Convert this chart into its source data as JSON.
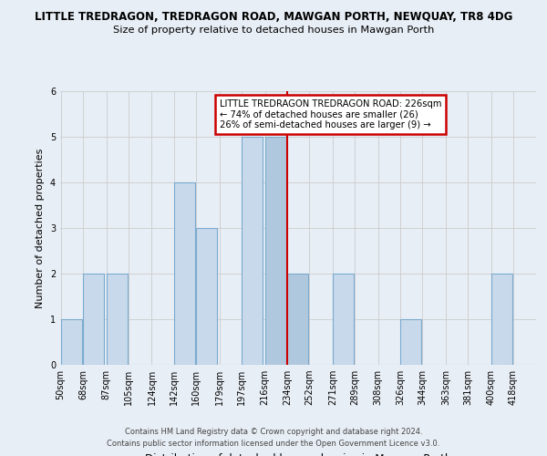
{
  "title": "LITTLE TREDRAGON, TREDRAGON ROAD, MAWGAN PORTH, NEWQUAY, TR8 4DG",
  "subtitle": "Size of property relative to detached houses in Mawgan Porth",
  "xlabel": "Distribution of detached houses by size in Mawgan Porth",
  "ylabel": "Number of detached properties",
  "bins": [
    50,
    68,
    87,
    105,
    124,
    142,
    160,
    179,
    197,
    216,
    234,
    252,
    271,
    289,
    308,
    326,
    344,
    363,
    381,
    400,
    418
  ],
  "bin_labels": [
    "50sqm",
    "68sqm",
    "87sqm",
    "105sqm",
    "124sqm",
    "142sqm",
    "160sqm",
    "179sqm",
    "197sqm",
    "216sqm",
    "234sqm",
    "252sqm",
    "271sqm",
    "289sqm",
    "308sqm",
    "326sqm",
    "344sqm",
    "363sqm",
    "381sqm",
    "400sqm",
    "418sqm"
  ],
  "counts": [
    1,
    2,
    2,
    0,
    0,
    4,
    3,
    0,
    5,
    5,
    2,
    0,
    2,
    0,
    0,
    1,
    0,
    0,
    0,
    2,
    0
  ],
  "highlight_indices": [
    9,
    10
  ],
  "bar_color_normal": "#c8d9eb",
  "bar_color_highlight": "#b0c8de",
  "bar_edge_color": "#7aaacf",
  "highlight_line_color": "#cc0000",
  "highlight_line_index": 10,
  "annotation_title": "LITTLE TREDRAGON TREDRAGON ROAD: 226sqm",
  "annotation_line1": "← 74% of detached houses are smaller (26)",
  "annotation_line2": "26% of semi-detached houses are larger (9) →",
  "annotation_box_color": "#ffffff",
  "annotation_border_color": "#cc0000",
  "ylim": [
    0,
    6
  ],
  "yticks": [
    0,
    1,
    2,
    3,
    4,
    5,
    6
  ],
  "footer1": "Contains HM Land Registry data © Crown copyright and database right 2024.",
  "footer2": "Contains public sector information licensed under the Open Government Licence v3.0.",
  "background_color": "#e8eef5"
}
